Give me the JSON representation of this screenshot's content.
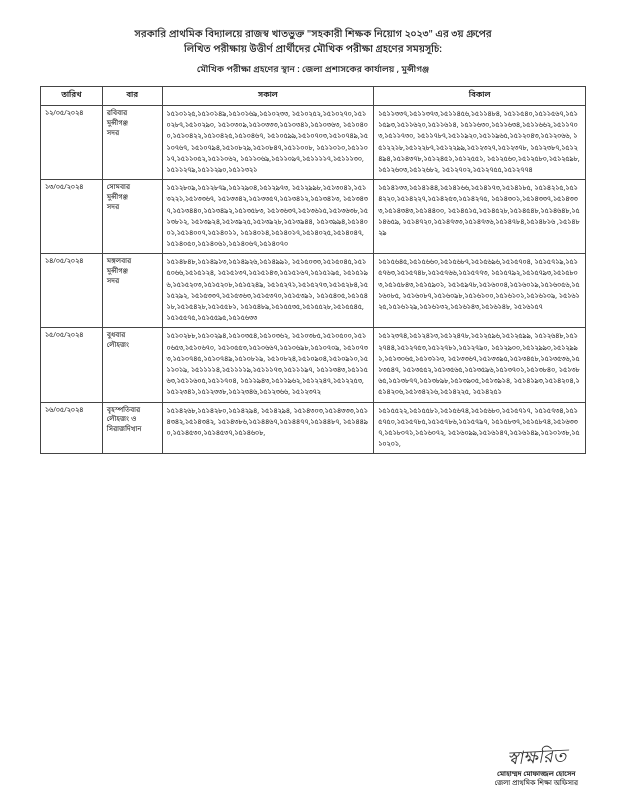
{
  "header_line1": "সরকারি প্রাথমিক বিদ্যালয়ে রাজস্ব খাতভুক্ত \"সহকারী শিক্ষক নিয়োগ ২০২৩\" এর ৩য় গ্রুপের",
  "header_line2": "লিখিত পরীক্ষায় উত্তীর্ণ প্রার্থীদের মৌখিক পরীক্ষা গ্রহণের সময়সূচি:",
  "subheader": "মৌখিক পরীক্ষা গ্রহণের স্থান : জেলা প্রশাসকের কার্যালয় , মুন্সীগঞ্জ",
  "columns": {
    "date": "তারিখ",
    "day": "বার",
    "morning": "সকাল",
    "afternoon": "বিকাল"
  },
  "rows": [
    {
      "date": "১২/০৫/২০২৪",
      "day": "রবিবার\nমুন্সীগঞ্জ\nসদর",
      "morning": "১৫১০১২৫,১৫১০১৪৯,১৫১০১৬৯,১৫১০২৩৩, ১৫১০২৫২,১৫১০২৭০,১৫১০২৮৭,১৫১০২৯০, ১৫১০৩০৯,১৫১০৩৩৩,১৫১০৩৪১,১৫১০৩৬৩, ১৫১০৪০০,১৫১০৪২২,১৫১০৪২৫,১৫১০৪৬৭, ১৫১০৫৯৯,১৫১০৭০৩,১৫১০৭৪৯,১৫১০৭৬৭, ১৫১০৭৯৪,১৫১০৮২৯,১৫১০৮৪৭,১৫১১০০৮, ১৫১১০১০,১৫১১০১৭,১৫১১০৫২,১৫১১০৬২, ১৫১১০৬৯,১৫১১০৯৭,১৫১১১১৭,১৫১১১৩০, ১৫১১২৭৯,১৫১১২৯০,১৫১১৩২১",
      "afternoon": "১৫১১৩৩৭,১৫১১৩৭৩,১৫১১৪৫৬,১৫১১৪৮৪, ১৫১১৫৪০,১৫১১৫৬৭,১৫১১৫৯৩,১৫১১৬২০,১৫১১৬১৪, ১৫১১৬৩০,১৫১১৬৩৪,১৫১১৬৬২,১৫১১৭০৩,১৫১১৭৩০, ১৫১১৭৮৭,১৫১১৯২০,১৫১১৯৬৫,১৫১২০৪৩,১৫১২০৬৬, ১৫১২২১৮,১৫১২২৮৭,১৫১২২৯৯,১৫১২৩২৭,১৫১২৩৭৮, ১৫১২৩৮৭,১৫১২৪৯৪,১৫১৪৩৭৮,১৫১২৪৫১,১৫১২৫৫১, ১৫১২৫৬০,১৫১২৫৮০,১৫১২৫৯৮,১৫১২৬০৩,১৫১২৬৮২, ১৫১২৭০২,১৫১২৭৫৫,১৫১২৭৭৪"
    },
    {
      "date": "১৩/০৫/২০২৪",
      "day": "সোমবার\nমুন্সীগঞ্জ\nসদর",
      "morning": "১৫১২৮০৯,১৫১২৮৭৯,১৫১২৯০৪,১৫১২৯৭৩, ১৫১২৯৯৮,১৫১৩০৪১,১৫১৩২২১,১৫১৩৩৬৭, ১৫১৩৩৪২,১৫১৩৩৫৭,১৫১৩৪১২,১৫১৩৪১৩, ১৫১৩৪৩৭,১৫১৩৪৪০,১৫১৩৪৯২,১৫১৩৫৮৩, ১৫১৩৬৩৭,১৫১৩৬১৫,১৫১৩৬৩৮,১৫১৩৮১২, ১৫১৩৯২৪,১৫১৩৯২৫,১৫১৩৯২৮,১৫১৩৯৪৪, ১৫১৩৯৯৪,১৫১৪০০১,১৫১৪০০৭,১৫১৪০১১, ১৫১৪০১৪,১৫১৪০১৭,১৫১৪০২৫,১৫১৪০৪৭, ১৫১৪০৫০,১৫১৪০৬১,১৫১৪০৬৭,১৫১৪০৭০",
      "afternoon": "১৫১৪১৩৩,১৫১৪১৪৪,১৫১৪১৬৬,১৫১৪১৭৩,১৫১৪১৮৫, ১৫১৪২১৫,১৫১৪২২০,১৫১৪২২৭,১৫১৪২৫৩,১৫১৪২৭৫, ১৫১৪৩০১,১৫১৪৩৩৭,১৫১৪৩৩৩,১৫১৪৩৪৩,১৫১৪৪০০, ১৫১৪৫১৫,১৫১৪৫২৮,১৫১৪৫৪৮,১৫১৪৬৪৮,১৫১৪৬৫৯, ১৫১৪৭২০,১৫১৪৭৩৩,১৫১৪৭৩৬,১৫১৪৭৮৪,১৫১৪৮১৬ ,১৫১৪৮২৯"
    },
    {
      "date": "১৪/০৫/২০২৪",
      "day": "মঙ্গলবার\nমুন্সীগঞ্জ\nসদর",
      "morning": "১৫১৪৮৪৮,১৫১৪৯১৩,১৫১৪৯২৬,১৫১৪৯৯১, ১৫১৫০৩৩,১৫১৫০৪৫,১৫১৫০৬৬,১৫১৫১২৪, ১৫১৫১৩৭,১৫১৫১৪৩,১৫১৫১৬৭,১৫১৫১৯৫, ১৫১৫১৯৬,১৫১৫২০৩,১৫১৫২০৮,১৫১৫২৪৯, ১৫১৫২৭১,১৫১৫২৭৩,১৫১৫২৮৪,১৫১৫২৯২, ১৫১৫৩৩৭,১৫১৫৩৬৩,১৫১৫৩৭০,১৫১৫৩৯১, ১৫১৫৪০৫,১৫১৫৪১৮,১৫১৫৪২৮,১৫১৫৫৮১, ১৫১৫৪৮৯,১৫১৫৫৩৫,১৫১৫৫২৮,১৫১৫৫৪৫, ১৫১৫৫৭৫,১৫১৫৫৯৫,১৫১৫৬৩৩",
      "afternoon": "১৫১৫৬৪৫,১৫১৫৬৬০,১৫১৫৬৮৭,১৫১৫৬৯৬,১৫১৫৭০৪, ১৫১৫৭১৯,১৫১৫৭৬৩,১৫১৫৭৪৮,১৫১৫৭৬৬,১৫১৫৭৭৩, ১৫১৫৭৯২,১৫১৫৭৯৩,১৫১৫৮০৩,১৫১৫৮৪৩,১৫১৫৯০১, ১৫১৫৯৭৮,১৫১৬০০৪,১৫১৬০১৯,১৫১৬০৫৬,১৫১৬০৮৫, ১৫১৬০৮৭,১৫১৬০৯৮,১৫১৬১০০,১৫১৬১০১,১৫১৬১০৯, ১৫১৬১২৫,১৫১৬১২৯,১৫১৬১৩২,১৫১৬১৪৩,১৫১৬১৪৮, ১৫১৬১৫৭"
    },
    {
      "date": "১৫/০৫/২০২৪",
      "day": "বুধবার\nলৌহজং",
      "morning": "১৫১০২৮৮,১৫১০২৯৪,১৫১০৩৫৪,১৫১০৩৬২, ১৫১০৩৮৫,১৫১০৫০০,১৫১০৬৫৩,১৫১০৬৭০, ১৫১০৫৫৩,১৫১০৬৬৭,১৫১০৬৯৮,১৫১০৭০৯, ১৫১০৭৩৩,১৫১০৭৪৫,১৫১০৭৪৯,১৫১০৮১৯, ১৫১০৮২৪,১৫১০৯০৪,১৫১০৯১০,১৫১১০১৯, ১৫১১১১৪,১৫১১১১৯,১৫১১১৭৩,১৫১১১৯৭, ১৫১১৩৪৩,১৫১১৫৬৩,১৫১১৬০৫,১৫১১৭০৪, ১৫১১৯৪৩,১৫১১৯৬২,১৫১২২৪৭,১৫১২২৫৩, ১৫১২৩৪১,১৫১২৩৩৮,১৫১২৩৪৬,১৫১২৩৬৬, ১৫১২৩৭২",
      "afternoon": "১৫১২৩৭৪,১৫১২৪১৩,১৫১২৪৭৮,১৫১২৫৯৬,১৫১২৫৯৯, ১৫১২৬৪৮,১৫১২৭৪৪,১৫১২৭৫৩,১৫১২৭৮১,১৫১২৭৯০, ১৫১২৯০০,১৫১২৯৯০,১৫১২৯৯১,১৫১৩০৬৫,১৫১৩১১৩, ১৫১৩৩৬৭,১৫১৩৩৯৫,১৫১৩৪৫৮,১৫১৩৫৩৬,১৫১৩৫৪৭, ১৫১৩৫৫২,১৫১৩৫৬৫,১৫১৩৫৯৬,১৫১৩৭০১,১৫১৩৮৪০, ১৫১৩৮৬৫,১৫১৩৮৭৭,১৫১৩৮৯৮,১৫১৩৯০৫,১৫১৩৯১৪, ১৫১৪১৯৩,১৫১৪২০৪,১৫১৪২০৬,১৫১৩৪২১৬,১৫১৪২২৫, ১৫১৪২৫১"
    },
    {
      "date": "১৬/০৫/২০২৪",
      "day": "বৃহস্পতিবার\nলৌহজং ও\nসিরাজদিখান",
      "morning": "১৫১৪২৬৮,১৫১৪২৮০,১৫১৪২৯৪, ১৫১৪২৯৪, ১৫১৪৩০৩,১৫১৪৩৩৩,১৫১৪৩৪২,১৫১৪৩৪২, ১৫১৪৩৮৬,১৫১৪৪৬৭,১৫১৪৪৭৭,১৫১৪৪৮৭, ১৫১৪৪৯০,১৫১৪৫৩০,১৫১৪৫৩৭,১৫১৪৬০৮,",
      "afternoon": "১৫১৫৫২২,১৫১৫৫৮১,১৫১৫৬৭৪,১৫১৫৬৮০,১৫১৫৭১৭, ১৫১৫৭৩৪,১৫১৫৭৫০,১৫১৫৭৮৫,১৫১৫৭৮৬,১৫১৫৭৯৭, ১৫১৫৮৩৭,১৫১৫৮৭৪,১৫১৬৩৩৭,১৫১৮০৭১,১৫১৬০৭২, ১৫১৬০৯৯,১৫১৬১৪৭,১৫১৬১৪৯,১৫১০১৩৮,১৫১০২০১,"
    }
  ],
  "signature_scribble": "স্বাক্ষরিত",
  "signature_name": "মোহাম্মদ মোফাজ্জল হোসেন",
  "signature_title": "জেলা প্রাথমিক শিক্ষা অফিসার"
}
